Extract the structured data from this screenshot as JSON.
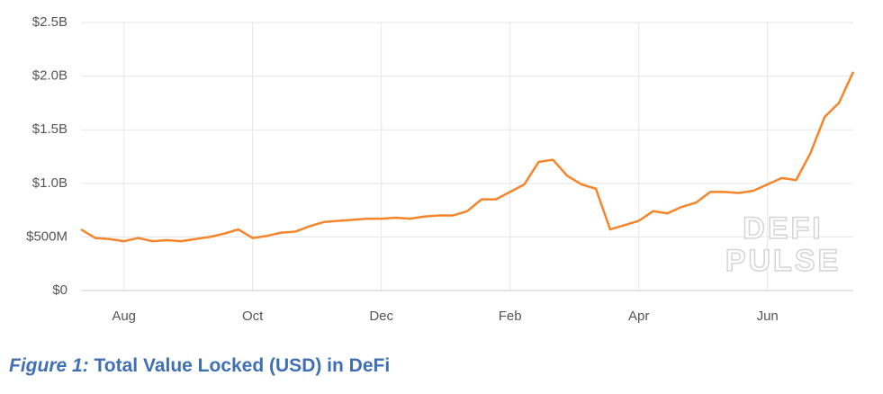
{
  "chart_data": {
    "type": "line",
    "categories": [
      null,
      null,
      null,
      "Aug",
      null,
      null,
      null,
      null,
      null,
      null,
      null,
      null,
      "Oct",
      null,
      null,
      null,
      null,
      null,
      null,
      null,
      null,
      "Dec",
      null,
      null,
      null,
      null,
      null,
      null,
      null,
      null,
      "Feb",
      null,
      null,
      null,
      null,
      null,
      null,
      null,
      null,
      "Apr",
      null,
      null,
      null,
      null,
      null,
      null,
      null,
      null,
      "Jun",
      null,
      null,
      null,
      null,
      null,
      null
    ],
    "series": [
      {
        "color": "#f5842a",
        "values": [
          0.57,
          0.49,
          0.48,
          0.46,
          0.49,
          0.46,
          0.47,
          0.46,
          0.48,
          0.5,
          0.53,
          0.57,
          0.49,
          0.51,
          0.54,
          0.55,
          0.6,
          0.64,
          0.65,
          0.66,
          0.67,
          0.67,
          0.68,
          0.67,
          0.69,
          0.7,
          0.7,
          0.74,
          0.85,
          0.85,
          0.92,
          0.99,
          1.2,
          1.22,
          1.07,
          0.99,
          0.95,
          0.57,
          0.61,
          0.65,
          0.74,
          0.72,
          0.78,
          0.82,
          0.92,
          0.92,
          0.91,
          0.93,
          0.99,
          1.05,
          1.03,
          1.28,
          1.62,
          1.75,
          2.04
        ]
      }
    ],
    "ylim": [
      0,
      2.5
    ],
    "yticks": [
      {
        "value": 0,
        "label": "$0"
      },
      {
        "value": 0.5,
        "label": "$500M"
      },
      {
        "value": 1.0,
        "label": "$1.0B"
      },
      {
        "value": 1.5,
        "label": "$1.5B"
      },
      {
        "value": 2.0,
        "label": "$2.0B"
      },
      {
        "value": 2.5,
        "label": "$2.5B"
      }
    ],
    "grid": true,
    "watermark": [
      "DEFI",
      "PULSE"
    ]
  },
  "figure": {
    "label": "Figure 1:",
    "caption": "Total Value Locked (USD) in DeFi"
  }
}
